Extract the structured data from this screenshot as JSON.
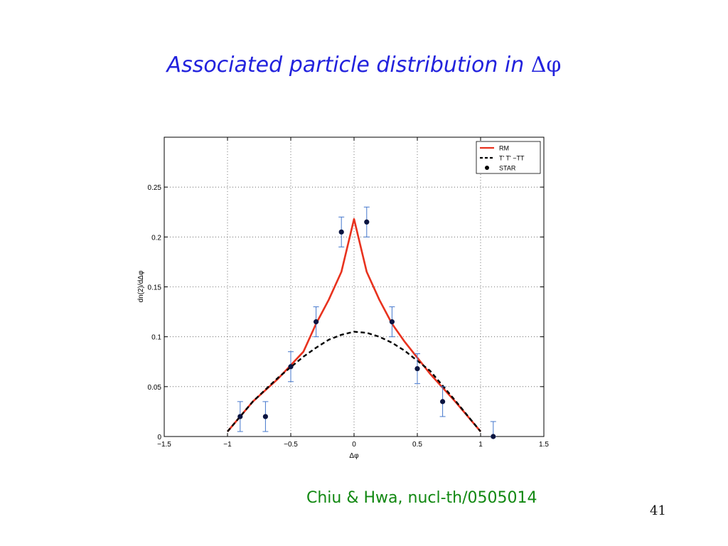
{
  "slide": {
    "title_prefix": "Associated particle distribution in ",
    "title_symbol": "Δφ",
    "citation": "Chiu & Hwa, nucl-th/0505014",
    "page_number": "41"
  },
  "chart_data": {
    "type": "line",
    "title": "",
    "xlabel": "Δφ",
    "ylabel": "dn(2)/dΔφ",
    "xlim": [
      -1.5,
      1.5
    ],
    "ylim": [
      0,
      0.3
    ],
    "xticks": [
      -1.5,
      -1,
      -0.5,
      0,
      0.5,
      1,
      1.5
    ],
    "xtick_labels": [
      "−1.5",
      "−1",
      "−0.5",
      "0",
      "0.5",
      "1",
      "1.5"
    ],
    "yticks": [
      0,
      0.05,
      0.1,
      0.15,
      0.2,
      0.25
    ],
    "ytick_labels": [
      "0",
      "0.05",
      "0.1",
      "0.15",
      "0.2",
      "0.25"
    ],
    "grid": true,
    "legend_position": "top-right",
    "series": [
      {
        "name": "RM",
        "style": "solid",
        "color": "#e8321e",
        "x": [
          -1.0,
          -0.8,
          -0.6,
          -0.4,
          -0.3,
          -0.2,
          -0.1,
          0.0,
          0.1,
          0.2,
          0.3,
          0.4,
          0.6,
          0.8,
          1.0
        ],
        "y": [
          0.005,
          0.035,
          0.058,
          0.085,
          0.113,
          0.137,
          0.165,
          0.218,
          0.165,
          0.137,
          0.113,
          0.095,
          0.063,
          0.035,
          0.005
        ]
      },
      {
        "name": "T' T' −TT",
        "style": "dashed",
        "color": "#000000",
        "x": [
          -1.0,
          -0.8,
          -0.6,
          -0.4,
          -0.3,
          -0.2,
          -0.1,
          0.0,
          0.1,
          0.2,
          0.3,
          0.4,
          0.6,
          0.8,
          1.0
        ],
        "y": [
          0.005,
          0.035,
          0.059,
          0.08,
          0.089,
          0.097,
          0.102,
          0.105,
          0.104,
          0.1,
          0.094,
          0.086,
          0.066,
          0.036,
          0.005
        ]
      },
      {
        "name": "STAR",
        "style": "markers",
        "color": "#0a1440",
        "error_color": "#4477cc",
        "x": [
          -0.9,
          -0.7,
          -0.5,
          -0.3,
          -0.1,
          0.1,
          0.3,
          0.5,
          0.7,
          1.1
        ],
        "y": [
          0.02,
          0.02,
          0.07,
          0.115,
          0.205,
          0.215,
          0.115,
          0.068,
          0.035,
          0.0
        ],
        "yerr": [
          0.015,
          0.015,
          0.015,
          0.015,
          0.015,
          0.015,
          0.015,
          0.015,
          0.015,
          0.015
        ]
      }
    ]
  }
}
